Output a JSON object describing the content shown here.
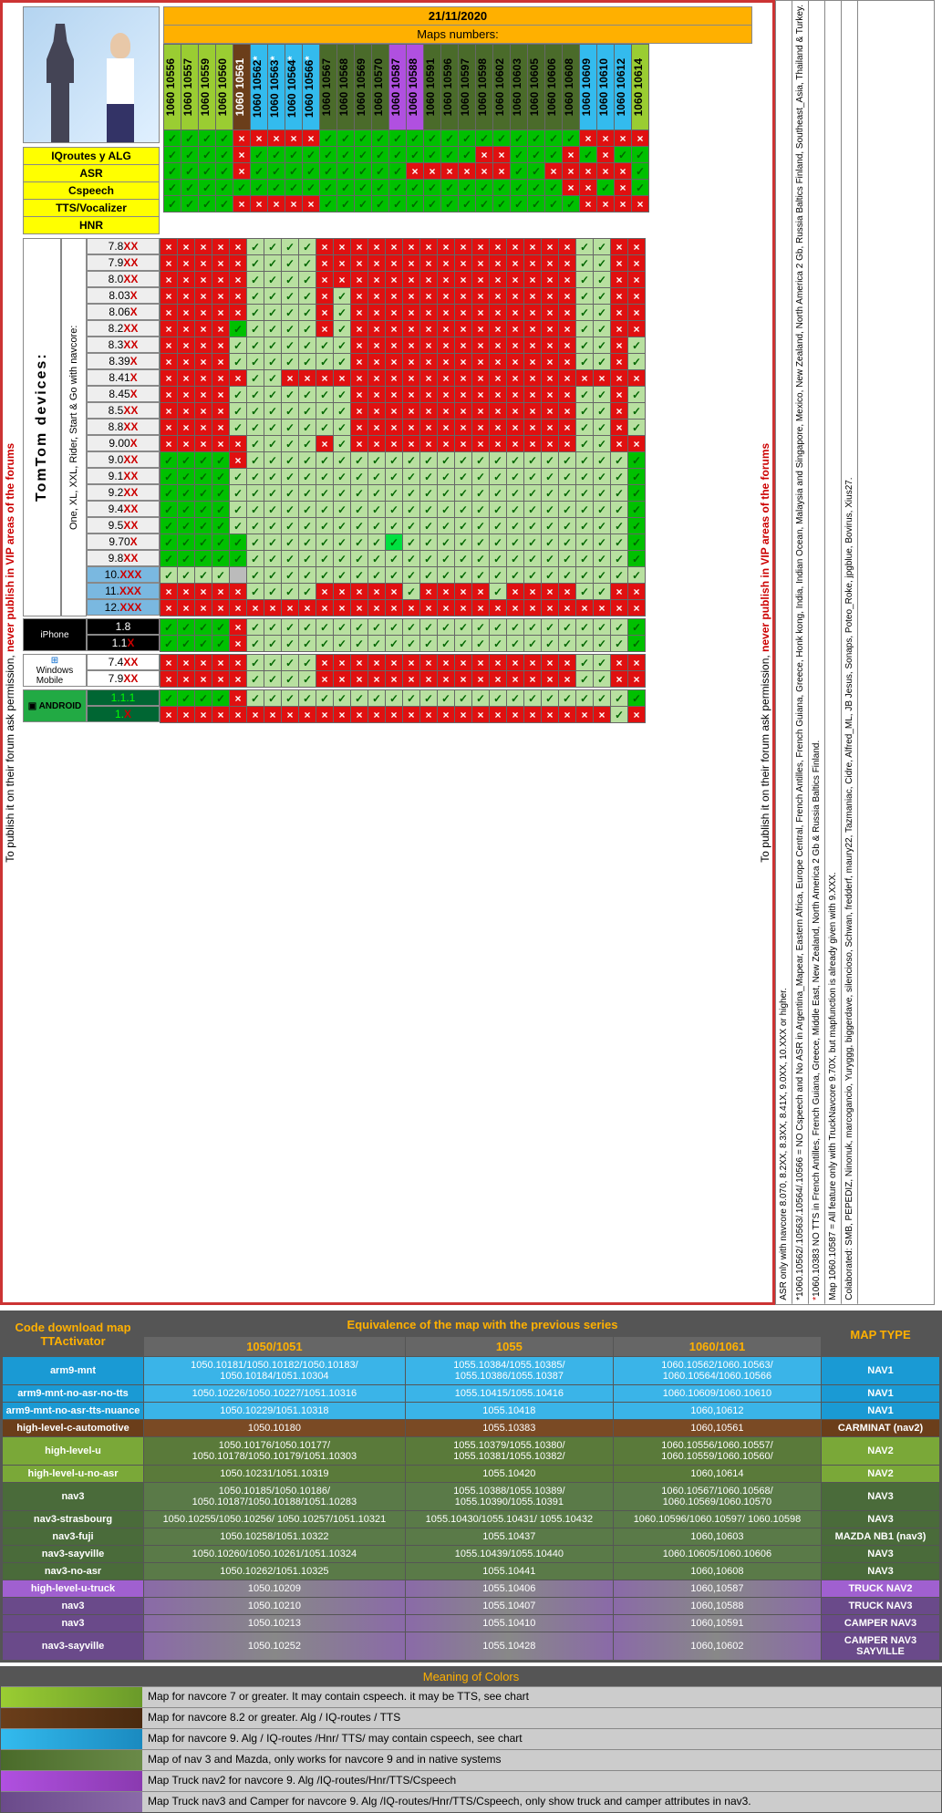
{
  "date": "21/11/2020",
  "maps_label": "Maps numbers:",
  "warn_pre": "To publish it on their forum ask permission, ",
  "warn_red": "never publish in VIP areas of the forums",
  "features": [
    "IQroutes y ALG",
    "ASR",
    "Cspeech",
    "TTS/Vocalizer",
    "HNR"
  ],
  "maps": [
    {
      "n": "1060 10556",
      "c": "#9acd32"
    },
    {
      "n": "1060 10557",
      "c": "#9acd32"
    },
    {
      "n": "1060 10559",
      "c": "#9acd32"
    },
    {
      "n": "1060 10560",
      "c": "#9acd32"
    },
    {
      "n": "1060 10561",
      "c": "#6b3e1a",
      "t": "#fff"
    },
    {
      "n": "1060 10562",
      "c": "#33bbee",
      "s": 1
    },
    {
      "n": "1060 10563",
      "c": "#33bbee",
      "s": 1
    },
    {
      "n": "1060 10564",
      "c": "#33bbee",
      "s": 1
    },
    {
      "n": "1060 10566",
      "c": "#33bbee",
      "s": 1
    },
    {
      "n": "1060 10567",
      "c": "#4a6b2a"
    },
    {
      "n": "1060 10568",
      "c": "#4a6b2a"
    },
    {
      "n": "1060 10569",
      "c": "#4a6b2a"
    },
    {
      "n": "1060 10570",
      "c": "#4a6b2a"
    },
    {
      "n": "1060 10587",
      "c": "#b050e0"
    },
    {
      "n": "1060 10588",
      "c": "#b050e0"
    },
    {
      "n": "1060 10591",
      "c": "#4a6b2a"
    },
    {
      "n": "1060 10596",
      "c": "#4a6b2a"
    },
    {
      "n": "1060 10597",
      "c": "#4a6b2a"
    },
    {
      "n": "1060 10598",
      "c": "#4a6b2a"
    },
    {
      "n": "1060 10602",
      "c": "#4a6b2a"
    },
    {
      "n": "1060 10603",
      "c": "#4a6b2a"
    },
    {
      "n": "1060 10605",
      "c": "#4a6b2a"
    },
    {
      "n": "1060 10606",
      "c": "#4a6b2a"
    },
    {
      "n": "1060 10608",
      "c": "#4a6b2a"
    },
    {
      "n": "1060 10609",
      "c": "#33bbee"
    },
    {
      "n": "1060 10610",
      "c": "#33bbee"
    },
    {
      "n": "1060 10612",
      "c": "#33bbee"
    },
    {
      "n": "1060 10614",
      "c": "#9acd32"
    }
  ],
  "colors": {
    "yes_bright": "#00c000",
    "yes_pale": "#b8e0a0",
    "no": "#e01010",
    "grey": "#bbb"
  },
  "feat_grid": [
    "ggggRRRRRgggggggggggggggRRRR",
    "ggggRgggggggggggggRRgggRgRgg",
    "ggggRgggggggggRRRRRRggRRRRRg",
    "gggggggggggggggggggggggRRgRg",
    "ggggRRRRRgggggggggggggggRRRR"
  ],
  "dev_label": "TomTom devices:",
  "dev_sub": "One, XL, XXL, Rider, Start & Go with navcore:",
  "versions": [
    {
      "v": "7.8",
      "x": "XX",
      "bg": "#eee"
    },
    {
      "v": "7.9",
      "x": "XX",
      "bg": "#eee"
    },
    {
      "v": "8.0",
      "x": "XX",
      "bg": "#eee"
    },
    {
      "v": "8.03",
      "x": "X",
      "bg": "#eee"
    },
    {
      "v": "8.06",
      "x": "X",
      "bg": "#eee"
    },
    {
      "v": "8.2",
      "x": "XX",
      "bg": "#eee"
    },
    {
      "v": "8.3",
      "x": "XX",
      "bg": "#eee"
    },
    {
      "v": "8.39",
      "x": "X",
      "bg": "#eee"
    },
    {
      "v": "8.41",
      "x": "X",
      "bg": "#eee"
    },
    {
      "v": "8.45",
      "x": "X",
      "bg": "#eee"
    },
    {
      "v": "8.5",
      "x": "XX",
      "bg": "#eee"
    },
    {
      "v": "8.8",
      "x": "XX",
      "bg": "#eee"
    },
    {
      "v": "9.00",
      "x": "X",
      "bg": "#eee"
    },
    {
      "v": "9.0",
      "x": "XX",
      "bg": "#eee"
    },
    {
      "v": "9.1",
      "x": "XX",
      "bg": "#eee"
    },
    {
      "v": "9.2",
      "x": "XX",
      "bg": "#eee"
    },
    {
      "v": "9.4",
      "x": "XX",
      "bg": "#eee"
    },
    {
      "v": "9.5",
      "x": "XX",
      "bg": "#eee"
    },
    {
      "v": "9.70",
      "x": "X",
      "bg": "#eee"
    },
    {
      "v": "9.8",
      "x": "XX",
      "bg": "#eee"
    },
    {
      "v": "10.",
      "x": "XXX",
      "bg": "#7ab8e0"
    },
    {
      "v": "11.",
      "x": "XXX",
      "bg": "#7ab8e0"
    },
    {
      "v": "12.",
      "x": "XXX",
      "bg": "#7ab8e0"
    }
  ],
  "ver_grid": [
    "RRRRRppppRRRRRRRRRRRRRRRppRR",
    "RRRRRppppRRRRRRRRRRRRRRRppRR",
    "RRRRRppppRRRRRRRRRRRRRRRppRR",
    "RRRRRppppRpRRRRRRRRRRRRRppRR",
    "RRRRRppppRpRRRRRRRRRRRRRppRR",
    "RRRRgppppRpRRRRRRRRRRRRRppRR",
    "RRRRpppppppRRRRRRRRRRRRRppRp",
    "RRRRpppppppRRRRRRRRRRRRRppRp",
    "RRRRRppRRRRRRRRRRRRRRRRRRRRR",
    "RRRRpppppppRRRRRRRRRRRRRppRp",
    "RRRRpppppppRRRRRRRRRRRRRppRp",
    "RRRRpppppppRRRRRRRRRRRRRppRp",
    "RRRRRppppRpRRRRRRRRRRRRRppRR",
    "ggggRppppppppppppppppppppppg",
    "ggggpppppppppppppppppppppppg",
    "ggggpppppppppppppppppppppppg",
    "ggggpppppppppppppppppppppppg",
    "ggggpppppppppppppppppppppppg",
    "gggggppppppppGpppppppppppppg",
    "gggggppppppppppppppppppppppg",
    "ppppyppppppppppppppppppppppp",
    "RRRRRppppRRRRRpRRRRpRRRRppRR",
    "RRRRRRRRRRRRRRRRRRRRRRRRRRRR"
  ],
  "iphone": [
    {
      "v": "1.8",
      "bg": "#000",
      "fg": "#fff"
    },
    {
      "v": "1.1",
      "x": "X",
      "bg": "#000",
      "fg": "#fff"
    }
  ],
  "iphone_grid": [
    "ggggRppppppppppppppppppppppg",
    "ggggRppppppppppppppppppppppg"
  ],
  "winmo": [
    {
      "v": "7.4",
      "x": "XX",
      "bg": "#fff"
    },
    {
      "v": "7.9",
      "x": "XX",
      "bg": "#fff"
    }
  ],
  "winmo_grid": [
    "RRRRRppppRRRRRRRRRRRRRRRppRR",
    "RRRRRppppRRRRRRRRRRRRRRRppRR"
  ],
  "android": [
    {
      "v": "1.1.1",
      "bg": "#063",
      "fg": "#0f0"
    },
    {
      "v": "1.",
      "x": "X",
      "bg": "#063",
      "fg": "#0f0"
    }
  ],
  "android_grid": [
    "ggggRppppppppppppppppppppppg",
    "RRRRRRRRRRRRRRRRRRRRRRRRRRpR"
  ],
  "notes": [
    "ASR only with navcore 8.070, 8.2XX, 8.3XX, 8.41X, 9.0XX, 10.XXX or higher.",
    "*1060.10562/.10563/.10564/.10566 = NO Cspeech and No ASR in Argentina_Mapear, Eastern Africa, Europe Central, French Antilles, French Guiana, Greece, Honk kong, India, Indian Ocean, Malaysia and Singapore, Mexico, New Zealand, North America 2 Gb, Russia Baltics Finland, Southeast_Asia, Thailand & Turkey.",
    "*1060.10383 NO TTS in French Antilles, French Guiana, Greece, Middle East, New Zealand, North America 2 Gb & Russia Baltics Finland.",
    "Map 1060.10587 = All feature only with TruckNavcore 9.70X, but mapfunction is already given with 9.XXX.",
    "Colaborated: SMB, PEPEDIZ, Ninonuk, marcogancio, Yuryggg, biggerdave, silencioso, Schwan, fredderf, maury22, Tazmaniac, Cidre, Alfred_ML, JB Jesus, Sonaps, Poteo_Roke, jpgblue, Bovirus, Xius27."
  ],
  "equiv": {
    "h1": "Code download map TTActivator",
    "h2": "Equivalence of the map with the previous series",
    "h3": "MAP TYPE",
    "cols": [
      "1050/1051",
      "1055",
      "1060/1061"
    ],
    "rows": [
      {
        "l": "arm9-mnt",
        "c": [
          "1050.10181/1050.10182/1050.10183/ 1050.10184/1051.10304",
          "1055.10384/1055.10385/ 1055.10386/1055.10387",
          "1060.10562/1060.10563/ 1060.10564/1060.10566"
        ],
        "t": "NAV1",
        "bg": "#1a9ad4",
        "rb": "#3ab4e8"
      },
      {
        "l": "arm9-mnt-no-asr-no-tts",
        "c": [
          "1050.10226/1050.10227/1051.10316",
          "1055.10415/1055.10416",
          "1060.10609/1060.10610"
        ],
        "t": "NAV1",
        "bg": "#1a9ad4",
        "rb": "#3ab4e8"
      },
      {
        "l": "arm9-mnt-no-asr-tts-nuance",
        "c": [
          "1050.10229/1051.10318",
          "1055.10418",
          "1060,10612"
        ],
        "t": "NAV1",
        "bg": "#1a9ad4",
        "rb": "#3ab4e8"
      },
      {
        "l": "high-level-c-automotive",
        "c": [
          "1050.10180",
          "1055.10383",
          "1060,10561"
        ],
        "t": "CARMINAT (nav2)",
        "bg": "#6b3e1a",
        "rb": "#7a4a24"
      },
      {
        "l": "high-level-u",
        "c": [
          "1050.10176/1050.10177/ 1050.10178/1050.10179/1051.10303",
          "1055.10379/1055.10380/ 1055.10381/1055.10382/",
          "1060.10556/1060.10557/ 1060.10559/1060.10560/"
        ],
        "t": "NAV2",
        "bg": "#7aa838",
        "rb": "#5a7a3a"
      },
      {
        "l": "high-level-u-no-asr",
        "c": [
          "1050.10231/1051.10319",
          "1055.10420",
          "1060,10614"
        ],
        "t": "NAV2",
        "bg": "#7aa838",
        "rb": "#5a7a3a"
      },
      {
        "l": "nav3",
        "c": [
          "1050.10185/1050.10186/ 1050.10187/1050.10188/1051.10283",
          "1055.10388/1055.10389/ 1055.10390/1055.10391",
          "1060.10567/1060.10568/ 1060.10569/1060.10570"
        ],
        "t": "NAV3",
        "bg": "#4a6b3a",
        "rb": "#5a7a48"
      },
      {
        "l": "nav3-strasbourg",
        "c": [
          "1050.10255/1050.10256/ 1050.10257/1051.10321",
          "1055.10430/1055.10431/ 1055.10432",
          "1060.10596/1060.10597/ 1060.10598"
        ],
        "t": "NAV3",
        "bg": "#4a6b3a",
        "rb": "#5a7a48"
      },
      {
        "l": "nav3-fuji",
        "c": [
          "1050.10258/1051.10322",
          "1055.10437",
          "1060,10603"
        ],
        "t": "MAZDA NB1 (nav3)",
        "bg": "#4a6b3a",
        "rb": "#5a7a48"
      },
      {
        "l": "nav3-sayville",
        "c": [
          "1050.10260/1050.10261/1051.10324",
          "1055.10439/1055.10440",
          "1060.10605/1060.10606"
        ],
        "t": "NAV3",
        "bg": "#4a6b3a",
        "rb": "#5a7a48"
      },
      {
        "l": "nav3-no-asr",
        "c": [
          "1050.10262/1051.10325",
          "1055.10441",
          "1060,10608"
        ],
        "t": "NAV3",
        "bg": "#4a6b3a",
        "rb": "#5a7a48"
      },
      {
        "l": "high-level-u-truck",
        "c": [
          "1050.10209",
          "1055.10406",
          "1060,10587"
        ],
        "t": "TRUCK NAV2",
        "bg": "#a060d0",
        "rb": "#8a6aa8",
        "grad": 1
      },
      {
        "l": "nav3",
        "c": [
          "1050.10210",
          "1055.10407",
          "1060,10588"
        ],
        "t": "TRUCK NAV3",
        "bg": "#6a4a8a",
        "rb": "#8a6aa8",
        "grad": 1
      },
      {
        "l": "nav3",
        "c": [
          "1050.10213",
          "1055.10410",
          "1060,10591"
        ],
        "t": "CAMPER NAV3",
        "bg": "#6a4a8a",
        "rb": "#8a6aa8",
        "grad": 1
      },
      {
        "l": "nav3-sayville",
        "c": [
          "1050.10252",
          "1055.10428",
          "1060,10602"
        ],
        "t": "CAMPER NAV3 SAYVILLE",
        "bg": "#6a4a8a",
        "rb": "#8a6aa8",
        "grad": 1
      }
    ]
  },
  "legend": {
    "title": "Meaning of Colors",
    "rows": [
      {
        "c": "#9acd32",
        "grad": "#6a9a2a",
        "t": "Map for navcore 7 or greater. It may contain cspeech. it may be TTS, see chart"
      },
      {
        "c": "#6b3e1a",
        "grad": "#4a2a10",
        "t": "Map for navcore 8.2 or greater. Alg / IQ-routes / TTS"
      },
      {
        "c": "#33bbee",
        "grad": "#1a8ac0",
        "t": "Map for navcore 9. Alg / IQ-routes /Hnr/ TTS/ may contain cspeech, see chart"
      },
      {
        "c": "#4a6b2a",
        "grad": "#6a8a48",
        "t": "Map of nav 3 and Mazda, only works for navcore 9 and in native systems"
      },
      {
        "c": "#b050e0",
        "grad": "#8a3ab0",
        "t": "Map Truck nav2 for navcore 9. Alg /IQ-routes/Hnr/TTS/Cspeech"
      },
      {
        "c": "#6a4a8a",
        "grad": "#8a6aa8",
        "t": "Map Truck nav3 and Camper for navcore 9. Alg /IQ-routes/Hnr/TTS/Cspeech, only show truck and camper attributes in nav3."
      }
    ]
  }
}
